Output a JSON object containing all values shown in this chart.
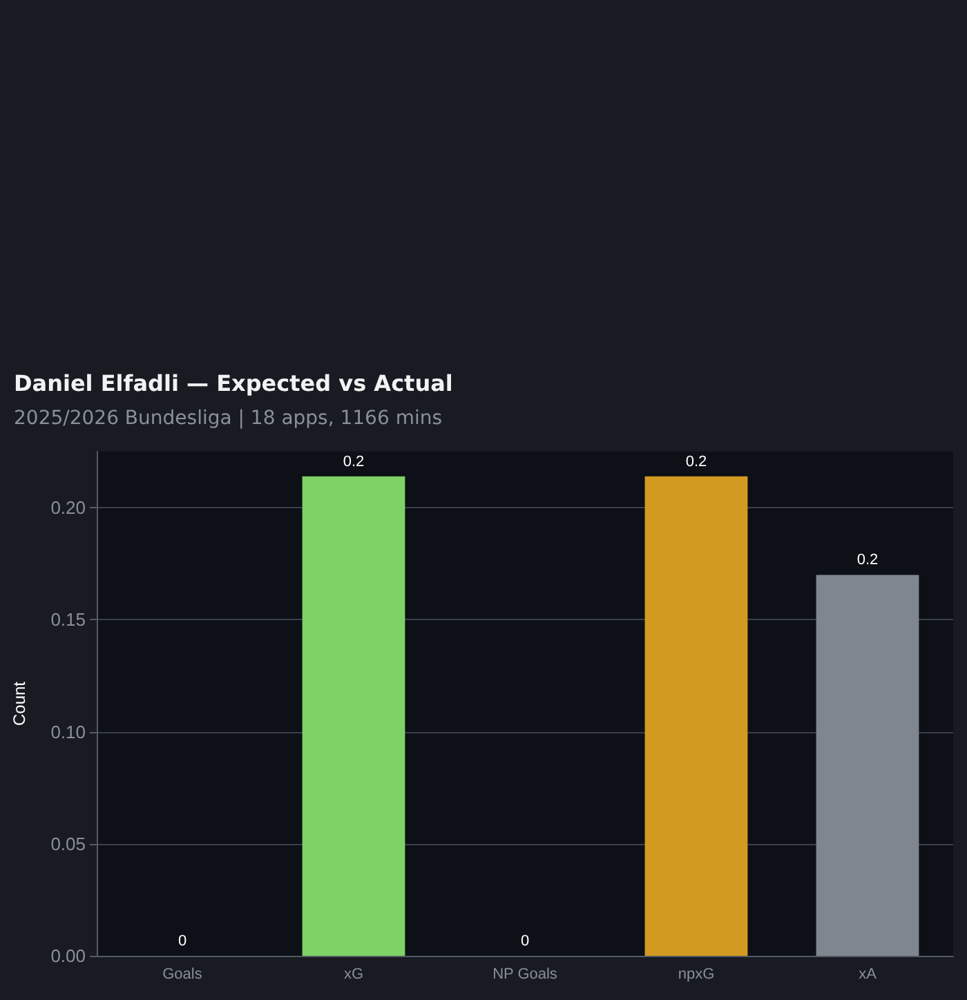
{
  "chart_data": {
    "type": "bar",
    "title": "Daniel Elfadli — Expected vs Actual",
    "subtitle": "2025/2026 Bundesliga | 18 apps, 1166 mins",
    "ylabel": "Count",
    "categories": [
      "Goals",
      "xG",
      "NP Goals",
      "npxG",
      "xA"
    ],
    "values": [
      0,
      0.214,
      0,
      0.214,
      0.17
    ],
    "value_labels": [
      "0",
      "0.2",
      "0",
      "0.2",
      "0.2"
    ],
    "colors": [
      "#7ed266",
      "#7ed266",
      "#d39a22",
      "#d39a22",
      "#808690"
    ],
    "ylim": [
      0,
      0.225
    ],
    "yticks": [
      {
        "value": 0,
        "label": "0.00"
      },
      {
        "value": 0.05,
        "label": "0.05"
      },
      {
        "value": 0.1,
        "label": "0.10"
      },
      {
        "value": 0.15,
        "label": "0.15"
      },
      {
        "value": 0.2,
        "label": "0.20"
      }
    ],
    "grid": "y"
  }
}
